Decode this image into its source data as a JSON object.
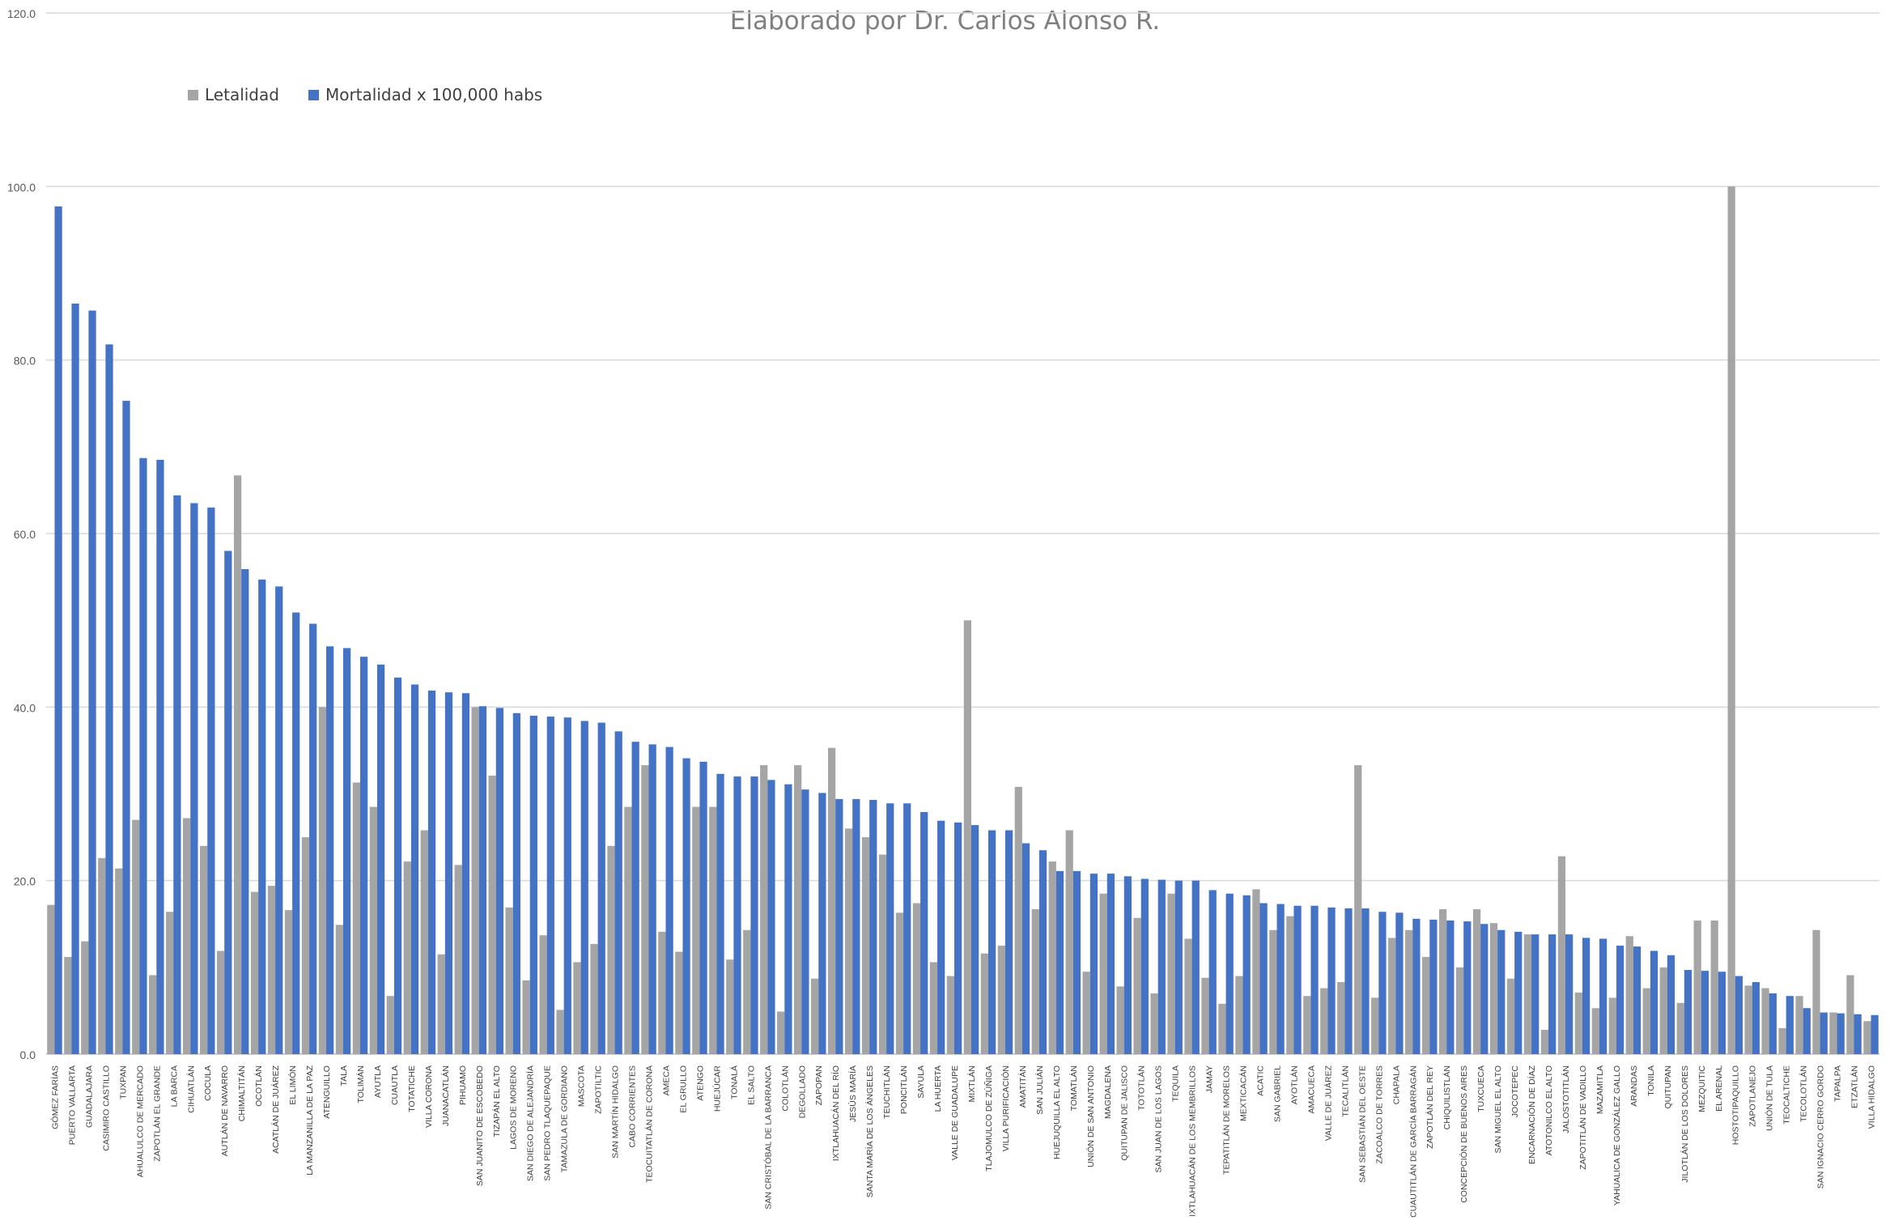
{
  "chart_data": {
    "type": "bar",
    "title": "Elaborado por Dr. Carlos Alonso R.",
    "ylim": [
      0,
      120
    ],
    "yticks": [
      "0.0",
      "20.0",
      "40.0",
      "60.0",
      "80.0",
      "100.0",
      "120.0"
    ],
    "grid": true,
    "legend_position": "top-left",
    "categories": [
      "GÓMEZ FARÍAS",
      "PUERTO VALLARTA",
      "GUADALAJARA",
      "CASIMIRO CASTILLO",
      "TUXPAN",
      "AHUALULCO DE MERCADO",
      "ZAPOTLÁN EL GRANDE",
      "LA BARCA",
      "CIHUATLÁN",
      "COCULA",
      "AUTLÁN DE NAVARRO",
      "CHIMALTITÁN",
      "OCOTLÁN",
      "ACATLÁN DE JUÁREZ",
      "EL LIMÓN",
      "LA MANZANILLA DE LA PAZ",
      "ATENGUILLO",
      "TALA",
      "TOLIMÁN",
      "AYUTLA",
      "CUAUTLA",
      "TOTATICHE",
      "VILLA CORONA",
      "JUANACATLÁN",
      "PIHUAMO",
      "SAN JUANITO DE ESCOBEDO",
      "TIZAPÁN EL ALTO",
      "LAGOS DE MORENO",
      "SAN DIEGO DE ALEJANDRÍA",
      "SAN PEDRO TLAQUEPAQUE",
      "TAMAZULA DE GORDIANO",
      "MASCOTA",
      "ZAPOTILTIC",
      "SAN MARTÍN HIDALGO",
      "CABO CORRIENTES",
      "TEOCUITATLÁN DE CORONA",
      "AMECA",
      "EL GRULLO",
      "ATENGO",
      "HUEJÚCAR",
      "TONALÁ",
      "EL SALTO",
      "SAN CRISTÓBAL DE LA BARRANCA",
      "COLOTLÁN",
      "DEGOLLADO",
      "ZAPOPAN",
      "IXTLAHUACÁN DEL RÍO",
      "JESÚS MARÍA",
      "SANTA MARÍA DE LOS ÁNGELES",
      "TEUCHITLÁN",
      "PONCITLÁN",
      "SAYULA",
      "LA HUERTA",
      "VALLE DE GUADALUPE",
      "MIXTLÁN",
      "TLAJOMULCO DE ZÚÑIGA",
      "VILLA PURIFICACIÓN",
      "AMATITÁN",
      "SAN JULIÁN",
      "HUEJUQUILLA EL ALTO",
      "TOMATLÁN",
      "UNIÓN DE SAN ANTONIO",
      "MAGDALENA",
      "QUITUPAN DE JALISCO",
      "TOTOTLÁN",
      "SAN JUAN DE LOS LAGOS",
      "TEQUILA",
      "IXTLAHUACÁN DE LOS MEMBRILLOS",
      "JAMAY",
      "TEPATITLÁN DE MORELOS",
      "MEXTICACÁN",
      "ACATIC",
      "SAN GABRIEL",
      "AYOTLÁN",
      "AMACUECA",
      "VALLE DE JUÁREZ",
      "TECALITLÁN",
      "SAN SEBASTIÁN DEL OESTE",
      "ZACOALCO DE TORRES",
      "CHAPALA",
      "CUAUTITLÁN DE GARCÍA BARRAGÁN",
      "ZAPOTLÁN DEL REY",
      "CHIQUILISTLÁN",
      "CONCEPCIÓN DE BUENOS AIRES",
      "TUXCUECA",
      "SAN MIGUEL EL ALTO",
      "JOCOTEPEC",
      "ENCARNACIÓN DE DÍAZ",
      "ATOTONILCO EL ALTO",
      "JALOSTOTITLÁN",
      "ZAPOTITLÁN DE VADILLO",
      "MAZAMITLA",
      "YAHUALICA DE GONZÁLEZ GALLO",
      "ARANDAS",
      "TONILA",
      "QUITUPAN",
      "JILOTLÁN DE LOS DOLORES",
      "MEZQUITIC",
      "EL ARENAL",
      "HOSTOTIPAQUILLO",
      "ZAPOTLANEJO",
      "UNIÓN DE TULA",
      "TEOCALTICHE",
      "TECOLOTLÁN",
      "SAN IGNACIO CERRO GORDO",
      "TAPALPA",
      "ETZATLÁN",
      "VILLA HIDALGO"
    ],
    "series": [
      {
        "name": "Letalidad",
        "color": "#a5a5a5",
        "values": [
          17.2,
          11.2,
          13.0,
          22.6,
          21.4,
          27.0,
          9.1,
          16.4,
          27.2,
          24.0,
          11.9,
          66.7,
          18.7,
          19.4,
          16.6,
          25.0,
          40.0,
          14.9,
          31.3,
          28.5,
          6.7,
          22.2,
          25.8,
          11.5,
          21.8,
          40.0,
          32.1,
          16.9,
          8.5,
          13.7,
          5.1,
          10.6,
          12.7,
          24.0,
          28.5,
          33.3,
          14.1,
          11.8,
          28.5,
          28.5,
          10.9,
          14.3,
          33.3,
          4.9,
          33.3,
          8.7,
          35.3,
          26.0,
          25.0,
          23.0,
          16.3,
          17.4,
          10.6,
          9.0,
          50.0,
          11.6,
          12.5,
          30.8,
          16.7,
          22.2,
          25.8,
          9.5,
          18.5,
          7.8,
          15.7,
          7.0,
          18.5,
          13.3,
          8.8,
          5.8,
          9.0,
          19.0,
          14.3,
          15.9,
          6.7,
          7.6,
          8.3,
          33.3,
          6.5,
          13.4,
          14.3,
          11.2,
          16.7,
          10.0,
          16.7,
          15.1,
          8.7,
          13.8,
          2.8,
          22.8,
          7.1,
          5.3,
          6.5,
          13.6,
          7.6,
          10.0,
          5.9,
          15.4,
          15.4,
          100.0,
          7.9,
          7.6,
          3.0,
          6.7,
          14.3,
          4.8,
          9.1,
          3.8
        ]
      },
      {
        "name": "Mortalidad x 100,000 habs",
        "color": "#4472c4",
        "values": [
          97.7,
          86.5,
          85.7,
          81.8,
          75.3,
          68.7,
          68.5,
          64.4,
          63.5,
          63.0,
          58.0,
          55.9,
          54.7,
          53.9,
          50.9,
          49.6,
          47.0,
          46.8,
          45.8,
          44.9,
          43.4,
          42.6,
          41.9,
          41.7,
          41.6,
          40.1,
          39.9,
          39.3,
          39.0,
          38.9,
          38.8,
          38.4,
          38.2,
          37.2,
          36.0,
          35.7,
          35.4,
          34.1,
          33.7,
          32.3,
          32.0,
          32.0,
          31.6,
          31.1,
          30.5,
          30.1,
          29.4,
          29.4,
          29.3,
          28.9,
          28.9,
          27.9,
          26.9,
          26.7,
          26.4,
          25.8,
          25.8,
          24.3,
          23.5,
          21.1,
          21.1,
          20.8,
          20.8,
          20.5,
          20.2,
          20.1,
          20.0,
          20.0,
          18.9,
          18.5,
          18.3,
          17.4,
          17.3,
          17.1,
          17.1,
          16.9,
          16.8,
          16.8,
          16.4,
          16.3,
          15.6,
          15.5,
          15.4,
          15.3,
          15.0,
          14.3,
          14.1,
          13.8,
          13.8,
          13.8,
          13.4,
          13.3,
          12.5,
          12.4,
          11.9,
          11.4,
          9.7,
          9.6,
          9.5,
          9.0,
          8.3,
          7.0,
          6.7,
          5.3,
          4.8,
          4.7,
          4.6,
          4.5
        ]
      }
    ]
  }
}
